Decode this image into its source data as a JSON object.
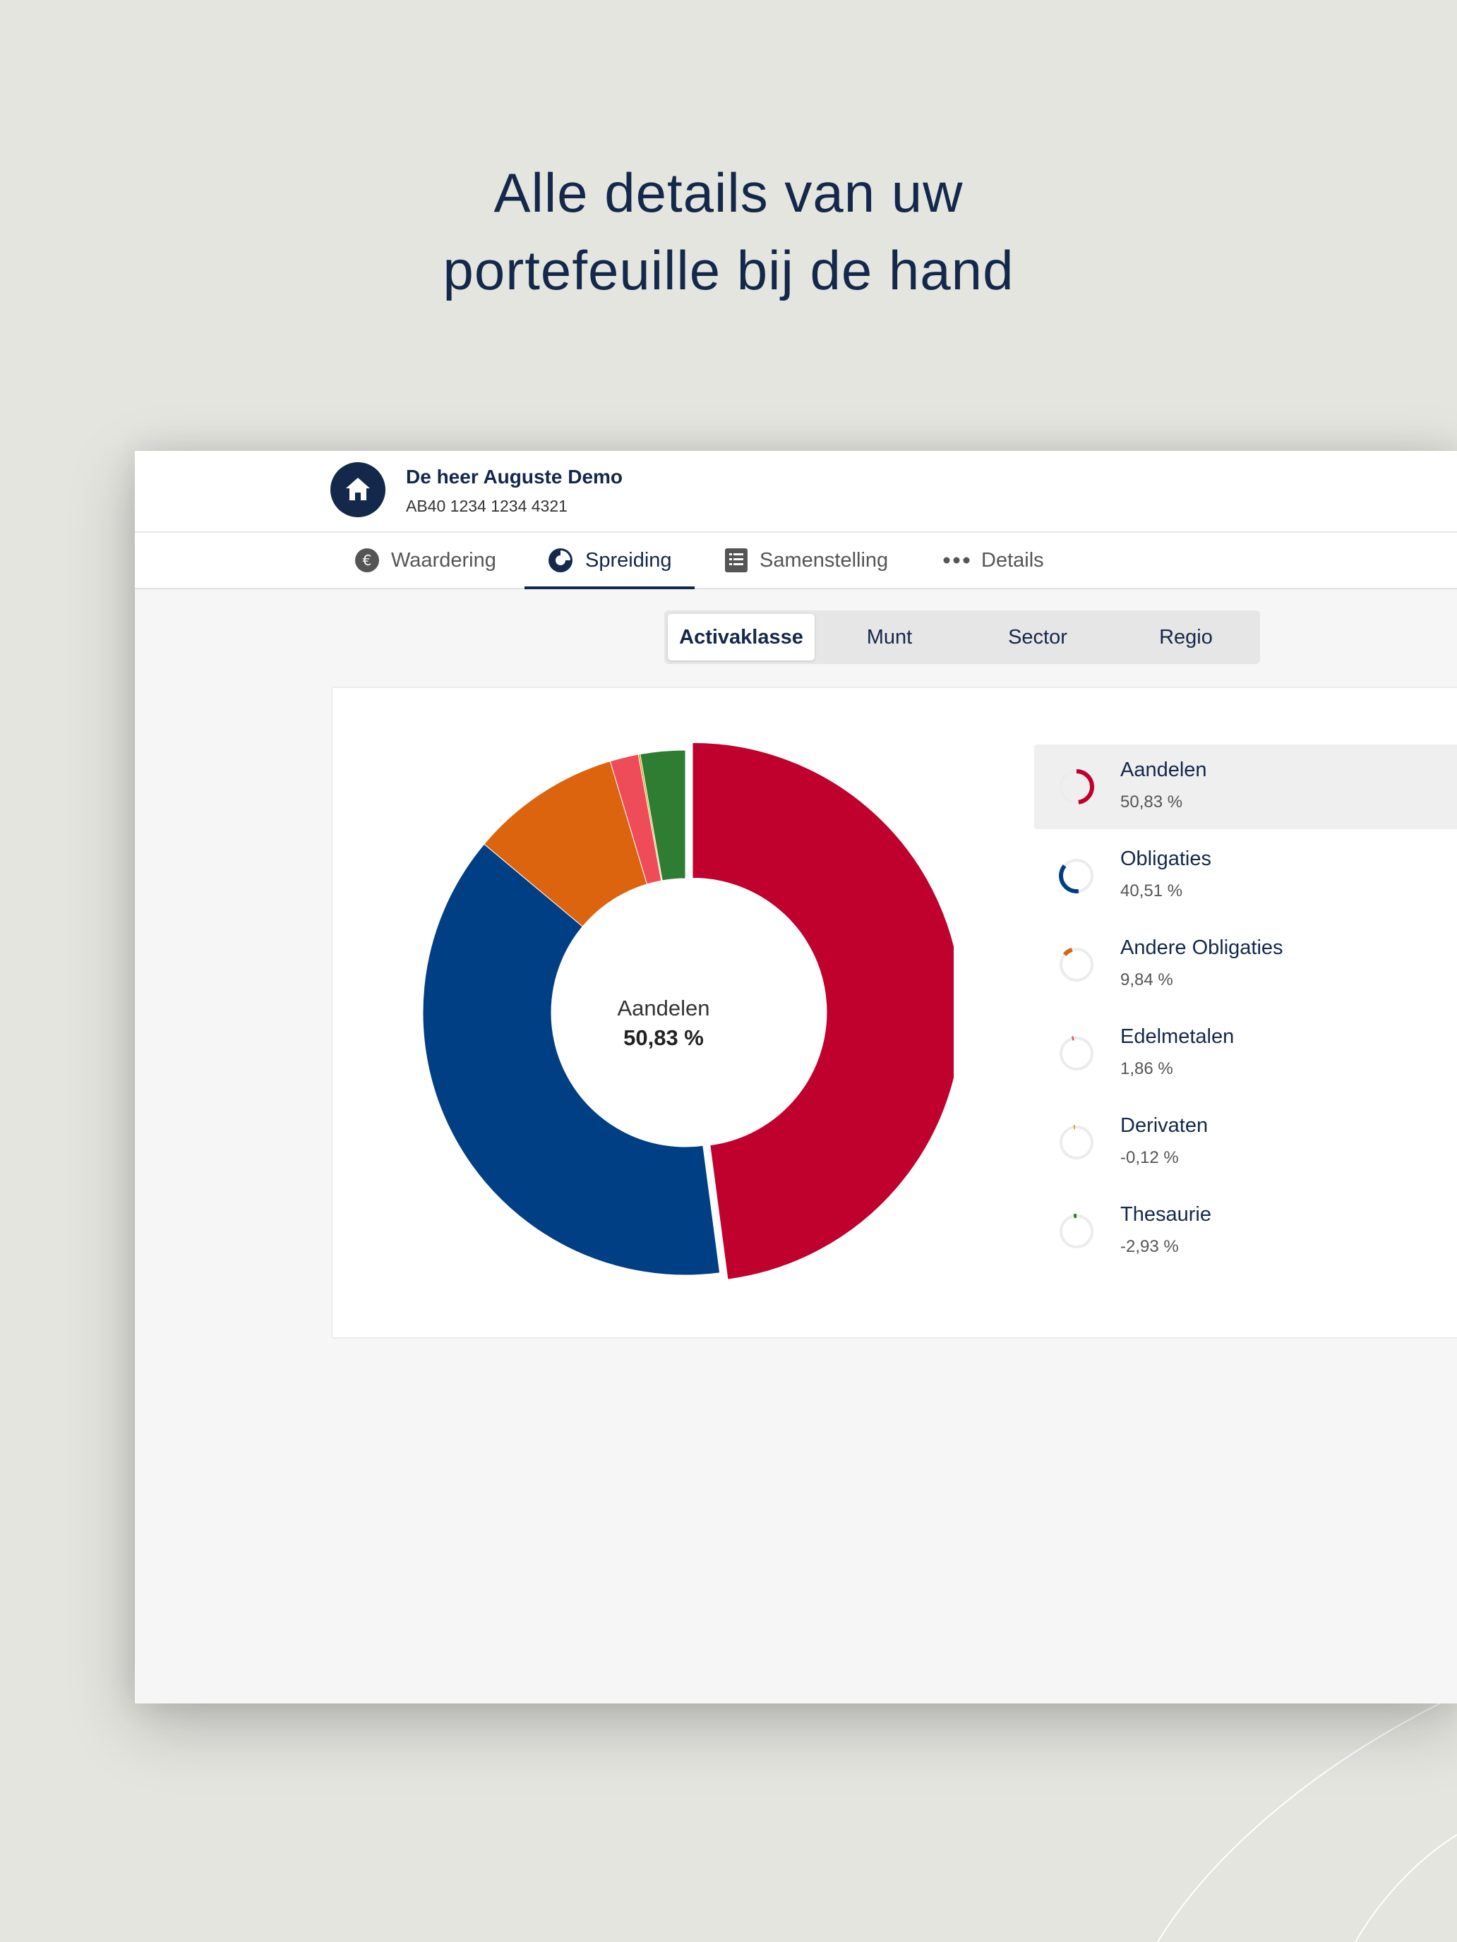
{
  "headline": {
    "line1": "Alle details van uw",
    "line2": "portefeuille bij de hand"
  },
  "client": {
    "name": "De heer Auguste Demo",
    "account": "AB40 1234 1234 4321"
  },
  "tabs": [
    {
      "label": "Waardering",
      "icon": "euro-icon",
      "active": false
    },
    {
      "label": "Spreiding",
      "icon": "donut-chart-icon",
      "active": true
    },
    {
      "label": "Samenstelling",
      "icon": "list-icon",
      "active": false
    },
    {
      "label": "Details",
      "icon": "more-dots-icon",
      "active": false
    }
  ],
  "segments": [
    {
      "label": "Activaklasse",
      "active": true
    },
    {
      "label": "Munt",
      "active": false
    },
    {
      "label": "Sector",
      "active": false
    },
    {
      "label": "Regio",
      "active": false
    }
  ],
  "chart_data": {
    "type": "pie",
    "categories": [
      "Aandelen",
      "Obligaties",
      "Andere Obligaties",
      "Edelmetalen",
      "Derivaten",
      "Thesaurie"
    ],
    "values": [
      50.83,
      40.51,
      9.84,
      1.86,
      -0.12,
      -2.93
    ],
    "labels": [
      "50,83 %",
      "40,51 %",
      "9,84 %",
      "1,86 %",
      "-0,12 %",
      "-2,93 %"
    ],
    "colors": [
      "#c0002d",
      "#003f83",
      "#dc640f",
      "#ef4c5a",
      "#c8a000",
      "#2e7d32"
    ],
    "selected_index": 0,
    "center_label": {
      "name": "Aandelen",
      "value": "50,83 %"
    }
  }
}
